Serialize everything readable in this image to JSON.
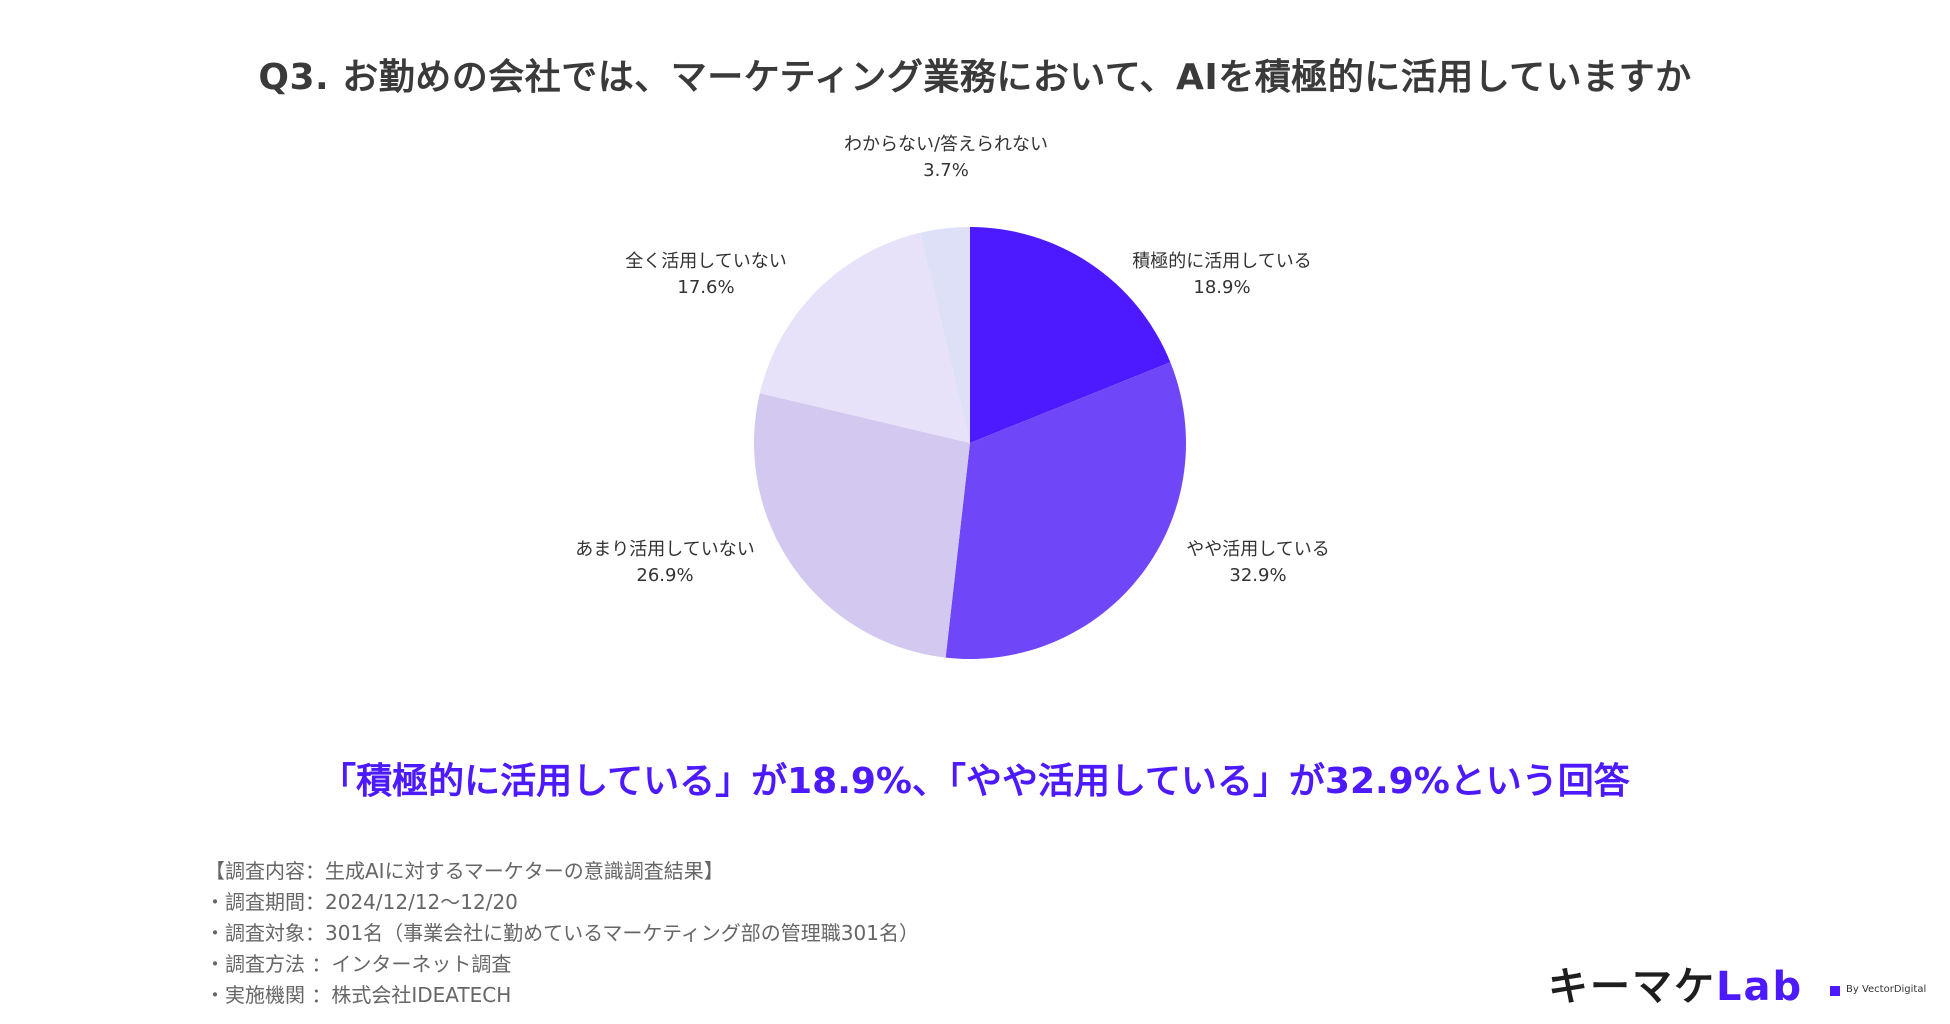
{
  "title": "Q3. お勤めの会社では、マーケティング業務において、AIを積極的に活用していますか",
  "headline": "「積極的に活用している」が18.9%、「やや活用している」が32.9%という回答",
  "chart_data": {
    "type": "pie",
    "categories": [
      "積極的に活用している",
      "やや活用している",
      "あまり活用していない",
      "全く活用していない",
      "わからない/答えられない"
    ],
    "values": [
      18.9,
      32.9,
      26.9,
      17.6,
      3.7
    ],
    "value_labels": [
      "18.9%",
      "32.9%",
      "26.9%",
      "17.6%",
      "3.7%"
    ],
    "colors": [
      "#4d1aff",
      "#7047f8",
      "#d3c8f0",
      "#e7e1fa",
      "#dde0f7"
    ],
    "start": "12 o'clock",
    "direction": "clockwise"
  },
  "footnotes": [
    "【調査内容：生成AIに対するマーケターの意識調査結果】",
    "・調査期間：2024/12/12〜12/20",
    "・調査対象：301名（事業会社に勤めているマーケティング部の管理職301名）",
    "・調査方法 ：インターネット調査",
    "・実施機関 ：株式会社IDEATECH"
  ],
  "logo": {
    "text_main": "キーマケ",
    "text_lab": "Lab",
    "by": "By VectorDigital"
  }
}
